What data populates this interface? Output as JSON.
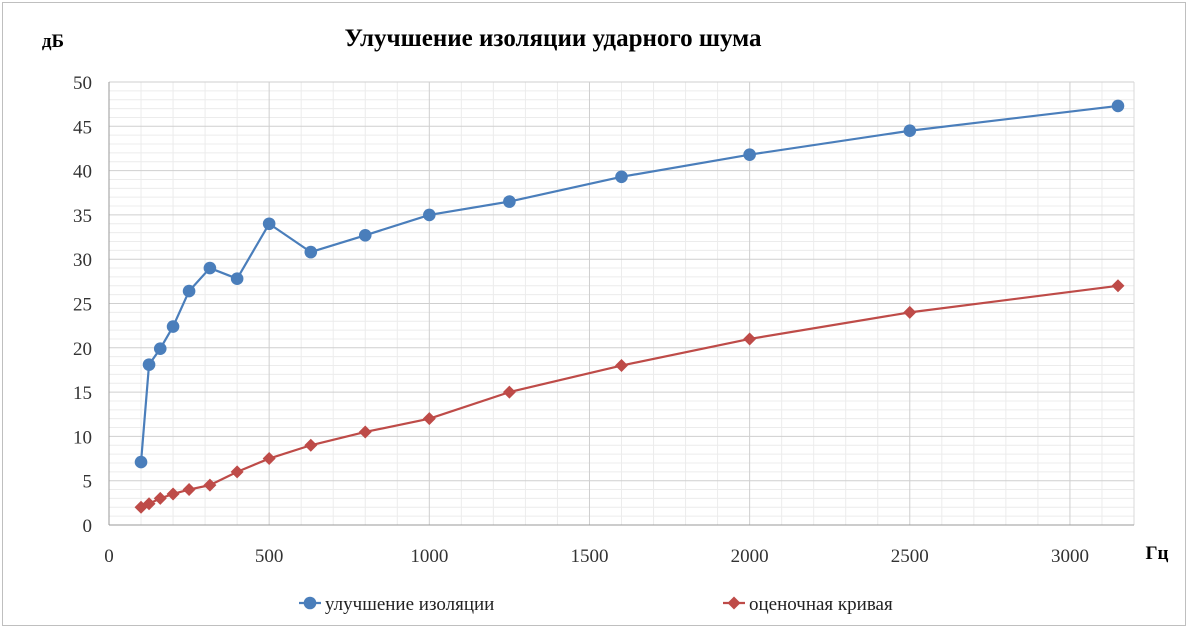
{
  "chart_data": {
    "type": "line",
    "title": "Улучшение изоляции ударного шума",
    "ylabel": "дБ",
    "xlabel": "Гц",
    "xlim": [
      0,
      3200
    ],
    "ylim": [
      0,
      50
    ],
    "x_ticks": [
      0,
      500,
      1000,
      1500,
      2000,
      2500,
      3000
    ],
    "y_ticks": [
      0,
      5,
      10,
      15,
      20,
      25,
      30,
      35,
      40,
      45,
      50
    ],
    "grid": true,
    "legend_position": "bottom",
    "series": [
      {
        "name": "улучшение изоляции",
        "color": "#4a7ebb",
        "marker": "circle",
        "x": [
          100,
          125,
          160,
          200,
          250,
          315,
          400,
          500,
          630,
          800,
          1000,
          1250,
          1600,
          2000,
          2500,
          3150
        ],
        "y": [
          7.1,
          18.1,
          19.9,
          22.4,
          26.4,
          29.0,
          27.8,
          34.0,
          30.8,
          32.7,
          35.0,
          36.5,
          39.3,
          41.8,
          44.5,
          47.3
        ]
      },
      {
        "name": "оценочная кривая",
        "color": "#be4b48",
        "marker": "diamond",
        "x": [
          100,
          125,
          160,
          200,
          250,
          315,
          400,
          500,
          630,
          800,
          1000,
          1250,
          1600,
          2000,
          2500,
          3150
        ],
        "y": [
          2.0,
          2.4,
          3.0,
          3.5,
          4.0,
          4.5,
          6.0,
          7.5,
          9.0,
          10.5,
          12.0,
          15.0,
          18.0,
          21.0,
          24.0,
          27.0
        ]
      }
    ]
  }
}
